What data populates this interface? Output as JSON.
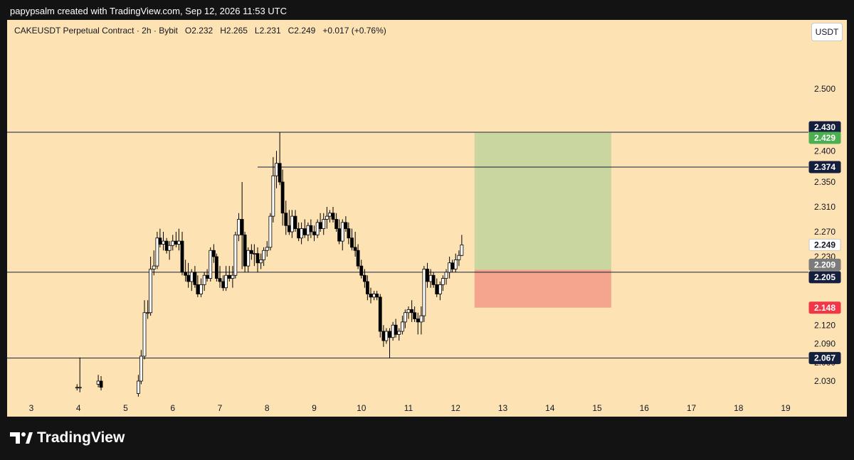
{
  "header": {
    "text": "papypsalm created with TradingView.com, Sep 12, 2026 11:53 UTC"
  },
  "chart_title": "CAKEUSDT Perpetual Contract · 2h · Bybit   O2.232   H2.265   L2.231   C2.249   +0.017 (+0.76%)",
  "currency": "USDT",
  "footer": {
    "brand": "TradingView"
  },
  "colors": {
    "background": "#fde2b4",
    "frame": "#131313",
    "candle_up": "#ffffff",
    "candle_down": "#000000",
    "target_zone": "#cad6a0",
    "stop_zone": "#f5a58d",
    "label_navy": "#131f3c",
    "label_green": "#4caf50",
    "label_red": "#f23645",
    "label_grey": "#7b7b7b",
    "label_current": "#ffffff"
  },
  "chart_data": {
    "type": "candlestick",
    "symbol": "CAKEUSDT",
    "interval": "2h",
    "exchange": "Bybit",
    "ohlc_last": {
      "open": 2.232,
      "high": 2.265,
      "low": 2.231,
      "close": 2.249,
      "change": 0.017,
      "change_pct": 0.76
    },
    "y_axis": {
      "ticks": [
        "2.500",
        "2.400",
        "2.350",
        "2.310",
        "2.270",
        "2.230",
        "2.120",
        "2.090",
        "2.060",
        "2.030"
      ],
      "range": [
        2.01,
        2.55
      ]
    },
    "x_axis": {
      "ticks": [
        "3",
        "4",
        "5",
        "6",
        "7",
        "8",
        "9",
        "10",
        "11",
        "12",
        "13",
        "14",
        "15",
        "16",
        "17",
        "18",
        "19"
      ],
      "range_days": [
        2.0,
        19.5
      ]
    },
    "horizontal_lines": [
      {
        "value": 2.43,
        "label": "2.430",
        "color": "#131f3c",
        "start_day": 2.0
      },
      {
        "value": 2.374,
        "label": "2.374",
        "color": "#131f3c",
        "start_day": 7.8
      },
      {
        "value": 2.205,
        "label": "2.205",
        "color": "#131f3c",
        "start_day": 2.0
      },
      {
        "value": 2.067,
        "label": "2.067",
        "color": "#131f3c",
        "start_day": 2.0
      }
    ],
    "position": {
      "type": "long",
      "entry": 2.209,
      "target": 2.429,
      "stop": 2.148,
      "start_day": 12.4,
      "end_day": 15.3
    },
    "price_labels": [
      {
        "value": 2.43,
        "label": "2.430",
        "bg": "#131f3c",
        "fg": "#ffffff"
      },
      {
        "value": 2.429,
        "label": "2.429",
        "bg": "#4caf50",
        "fg": "#ffffff"
      },
      {
        "value": 2.374,
        "label": "2.374",
        "bg": "#131f3c",
        "fg": "#ffffff"
      },
      {
        "value": 2.249,
        "label": "2.249",
        "bg": "#ffffff",
        "fg": "#131722"
      },
      {
        "value": 2.209,
        "label": "2.209",
        "bg": "#7b7b7b",
        "fg": "#ffffff"
      },
      {
        "value": 2.205,
        "label": "2.205",
        "bg": "#131f3c",
        "fg": "#ffffff"
      },
      {
        "value": 2.148,
        "label": "2.148",
        "bg": "#f23645",
        "fg": "#ffffff"
      },
      {
        "value": 2.067,
        "label": "2.067",
        "bg": "#131f3c",
        "fg": "#ffffff"
      }
    ],
    "candles": [
      [
        3.97,
        2.02,
        2.025,
        2.015,
        2.02
      ],
      [
        4.03,
        2.02,
        2.068,
        2.012,
        2.02
      ],
      [
        4.42,
        2.025,
        2.04,
        2.02,
        2.03
      ],
      [
        4.48,
        2.03,
        2.038,
        2.015,
        2.02
      ],
      [
        5.27,
        2.01,
        2.04,
        2.005,
        2.03
      ],
      [
        5.33,
        2.03,
        2.08,
        2.025,
        2.07
      ],
      [
        5.4,
        2.07,
        2.16,
        2.065,
        2.14
      ],
      [
        5.47,
        2.14,
        2.16,
        2.13,
        2.14
      ],
      [
        5.53,
        2.14,
        2.23,
        2.135,
        2.21
      ],
      [
        5.6,
        2.21,
        2.24,
        2.2,
        2.215
      ],
      [
        5.67,
        2.215,
        2.27,
        2.21,
        2.26
      ],
      [
        5.73,
        2.26,
        2.275,
        2.245,
        2.25
      ],
      [
        5.8,
        2.25,
        2.27,
        2.24,
        2.255
      ],
      [
        5.87,
        2.255,
        2.26,
        2.235,
        2.24
      ],
      [
        5.93,
        2.24,
        2.255,
        2.225,
        2.248
      ],
      [
        6.0,
        2.248,
        2.265,
        2.24,
        2.255
      ],
      [
        6.07,
        2.255,
        2.27,
        2.245,
        2.25
      ],
      [
        6.13,
        2.25,
        2.275,
        2.24,
        2.255
      ],
      [
        6.2,
        2.255,
        2.27,
        2.2,
        2.205
      ],
      [
        6.27,
        2.205,
        2.225,
        2.19,
        2.2
      ],
      [
        6.33,
        2.2,
        2.22,
        2.18,
        2.19
      ],
      [
        6.4,
        2.19,
        2.21,
        2.175,
        2.205
      ],
      [
        6.47,
        2.205,
        2.215,
        2.18,
        2.185
      ],
      [
        6.53,
        2.185,
        2.2,
        2.165,
        2.17
      ],
      [
        6.6,
        2.17,
        2.195,
        2.165,
        2.185
      ],
      [
        6.67,
        2.185,
        2.205,
        2.175,
        2.2
      ],
      [
        6.73,
        2.2,
        2.21,
        2.19,
        2.195
      ],
      [
        6.8,
        2.195,
        2.245,
        2.19,
        2.24
      ],
      [
        6.87,
        2.24,
        2.25,
        2.22,
        2.23
      ],
      [
        6.93,
        2.23,
        2.235,
        2.19,
        2.195
      ],
      [
        7.0,
        2.195,
        2.215,
        2.18,
        2.19
      ],
      [
        7.07,
        2.19,
        2.2,
        2.175,
        2.18
      ],
      [
        7.13,
        2.18,
        2.215,
        2.175,
        2.2
      ],
      [
        7.2,
        2.2,
        2.215,
        2.19,
        2.195
      ],
      [
        7.27,
        2.195,
        2.215,
        2.18,
        2.2
      ],
      [
        7.33,
        2.2,
        2.27,
        2.195,
        2.265
      ],
      [
        7.4,
        2.265,
        2.3,
        2.255,
        2.29
      ],
      [
        7.47,
        2.29,
        2.35,
        2.21,
        2.265
      ],
      [
        7.53,
        2.265,
        2.27,
        2.205,
        2.215
      ],
      [
        7.6,
        2.215,
        2.245,
        2.205,
        2.24
      ],
      [
        7.67,
        2.24,
        2.25,
        2.225,
        2.235
      ],
      [
        7.73,
        2.235,
        2.25,
        2.215,
        2.235
      ],
      [
        7.8,
        2.235,
        2.245,
        2.205,
        2.22
      ],
      [
        7.87,
        2.22,
        2.235,
        2.21,
        2.225
      ],
      [
        7.93,
        2.225,
        2.245,
        2.215,
        2.24
      ],
      [
        8.0,
        2.24,
        2.255,
        2.23,
        2.245
      ],
      [
        8.07,
        2.245,
        2.3,
        2.24,
        2.295
      ],
      [
        8.13,
        2.295,
        2.39,
        2.285,
        2.36
      ],
      [
        8.2,
        2.36,
        2.4,
        2.34,
        2.38
      ],
      [
        8.27,
        2.38,
        2.43,
        2.345,
        2.35
      ],
      [
        8.33,
        2.35,
        2.37,
        2.28,
        2.3
      ],
      [
        8.4,
        2.3,
        2.32,
        2.265,
        2.28
      ],
      [
        8.47,
        2.28,
        2.305,
        2.265,
        2.27
      ],
      [
        8.53,
        2.27,
        2.305,
        2.26,
        2.295
      ],
      [
        8.6,
        2.295,
        2.305,
        2.27,
        2.275
      ],
      [
        8.67,
        2.275,
        2.285,
        2.255,
        2.26
      ],
      [
        8.73,
        2.26,
        2.285,
        2.25,
        2.275
      ],
      [
        8.8,
        2.275,
        2.29,
        2.26,
        2.265
      ],
      [
        8.87,
        2.265,
        2.285,
        2.255,
        2.28
      ],
      [
        8.93,
        2.28,
        2.29,
        2.26,
        2.27
      ],
      [
        9.0,
        2.27,
        2.28,
        2.255,
        2.265
      ],
      [
        9.07,
        2.265,
        2.29,
        2.26,
        2.285
      ],
      [
        9.13,
        2.285,
        2.3,
        2.27,
        2.275
      ],
      [
        9.2,
        2.275,
        2.3,
        2.265,
        2.29
      ],
      [
        9.27,
        2.29,
        2.31,
        2.275,
        2.295
      ],
      [
        9.33,
        2.295,
        2.305,
        2.285,
        2.3
      ],
      [
        9.4,
        2.3,
        2.31,
        2.285,
        2.29
      ],
      [
        9.47,
        2.29,
        2.3,
        2.27,
        2.275
      ],
      [
        9.53,
        2.275,
        2.29,
        2.25,
        2.255
      ],
      [
        9.6,
        2.255,
        2.29,
        2.24,
        2.285
      ],
      [
        9.67,
        2.285,
        2.295,
        2.27,
        2.275
      ],
      [
        9.73,
        2.275,
        2.285,
        2.25,
        2.26
      ],
      [
        9.8,
        2.26,
        2.275,
        2.24,
        2.245
      ],
      [
        9.87,
        2.245,
        2.27,
        2.23,
        2.24
      ],
      [
        9.93,
        2.24,
        2.25,
        2.21,
        2.215
      ],
      [
        10.0,
        2.215,
        2.225,
        2.195,
        2.2
      ],
      [
        10.07,
        2.2,
        2.21,
        2.18,
        2.19
      ],
      [
        10.13,
        2.19,
        2.2,
        2.16,
        2.17
      ],
      [
        10.2,
        2.17,
        2.18,
        2.155,
        2.165
      ],
      [
        10.27,
        2.165,
        2.175,
        2.16,
        2.17
      ],
      [
        10.33,
        2.17,
        2.175,
        2.16,
        2.165
      ],
      [
        10.4,
        2.165,
        2.17,
        2.1,
        2.11
      ],
      [
        10.47,
        2.11,
        2.12,
        2.085,
        2.095
      ],
      [
        10.53,
        2.095,
        2.115,
        2.09,
        2.11
      ],
      [
        10.6,
        2.11,
        2.115,
        2.067,
        2.1
      ],
      [
        10.67,
        2.1,
        2.125,
        2.095,
        2.12
      ],
      [
        10.73,
        2.12,
        2.13,
        2.1,
        2.105
      ],
      [
        10.8,
        2.105,
        2.115,
        2.095,
        2.11
      ],
      [
        10.87,
        2.11,
        2.135,
        2.105,
        2.125
      ],
      [
        10.93,
        2.125,
        2.145,
        2.115,
        2.14
      ],
      [
        11.0,
        2.14,
        2.15,
        2.13,
        2.145
      ],
      [
        11.07,
        2.145,
        2.16,
        2.125,
        2.14
      ],
      [
        11.13,
        2.14,
        2.15,
        2.125,
        2.13
      ],
      [
        11.2,
        2.13,
        2.14,
        2.105,
        2.125
      ],
      [
        11.27,
        2.125,
        2.15,
        2.105,
        2.135
      ],
      [
        11.33,
        2.135,
        2.215,
        2.125,
        2.21
      ],
      [
        11.4,
        2.21,
        2.22,
        2.18,
        2.19
      ],
      [
        11.47,
        2.19,
        2.21,
        2.18,
        2.2
      ],
      [
        11.53,
        2.2,
        2.205,
        2.18,
        2.185
      ],
      [
        11.6,
        2.185,
        2.195,
        2.165,
        2.17
      ],
      [
        11.67,
        2.17,
        2.19,
        2.16,
        2.185
      ],
      [
        11.73,
        2.185,
        2.2,
        2.175,
        2.195
      ],
      [
        11.8,
        2.195,
        2.21,
        2.185,
        2.205
      ],
      [
        11.87,
        2.205,
        2.23,
        2.195,
        2.22
      ],
      [
        11.93,
        2.22,
        2.225,
        2.205,
        2.21
      ],
      [
        12.0,
        2.21,
        2.235,
        2.205,
        2.225
      ],
      [
        12.07,
        2.225,
        2.24,
        2.215,
        2.232
      ],
      [
        12.13,
        2.232,
        2.265,
        2.231,
        2.249
      ]
    ]
  }
}
